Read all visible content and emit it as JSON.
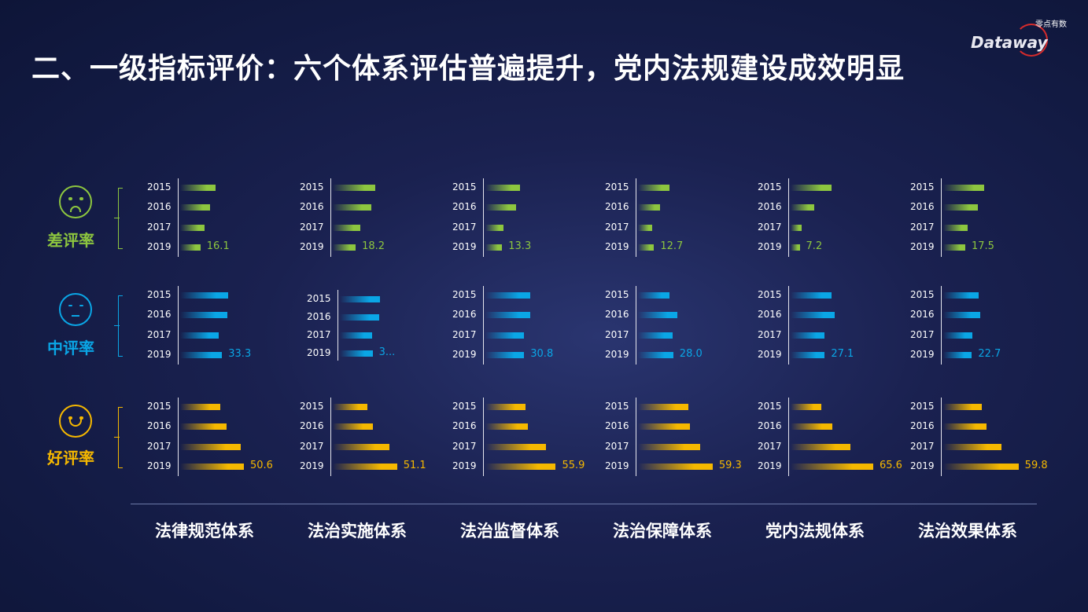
{
  "title": "二、一级指标评价：六个体系评估普遍提升，党内法规建设成效明显",
  "logo": {
    "name": "Dataway",
    "cn": "零点有数"
  },
  "colors": {
    "bad": "#8dc63f",
    "mid": "#0aa6e6",
    "good": "#f5b800"
  },
  "chart_data": {
    "type": "bar",
    "orientation": "horizontal",
    "years": [
      "2015",
      "2016",
      "2017",
      "2019"
    ],
    "categories": [
      "法律规范体系",
      "法治实施体系",
      "法治监督体系",
      "法治保障体系",
      "党内法规体系",
      "法治效果体系"
    ],
    "rows": [
      {
        "label": "差评率",
        "icon": "angry-face-icon",
        "key": "bad",
        "values": [
          [
            28.4,
            23.7,
            19.5,
            16.1
          ],
          [
            33.7,
            30.5,
            22.1,
            18.2
          ],
          [
            27.4,
            24.2,
            14.2,
            13.3
          ],
          [
            24.7,
            17.4,
            11.0,
            12.7
          ],
          [
            32.6,
            19.0,
            9.0,
            7.2
          ],
          [
            32.6,
            27.4,
            19.5,
            17.5
          ]
        ],
        "labels": [
          "16.1",
          "18.2",
          "13.3",
          "12.7",
          "7.2",
          "17.5"
        ]
      },
      {
        "label": "中评率",
        "icon": "neutral-face-icon",
        "key": "mid",
        "values": [
          [
            38.4,
            37.4,
            30.5,
            33.3
          ],
          [
            31.6,
            31.0,
            25.8,
            26.0
          ],
          [
            35.8,
            35.8,
            30.5,
            30.8
          ],
          [
            24.7,
            31.0,
            27.4,
            28.0
          ],
          [
            32.6,
            34.7,
            26.8,
            27.1
          ],
          [
            28.4,
            29.5,
            23.2,
            22.7
          ]
        ],
        "labels": [
          "33.3",
          "3...",
          "30.8",
          "28.0",
          "27.1",
          "22.7"
        ]
      },
      {
        "label": "好评率",
        "icon": "happy-face-icon",
        "key": "good",
        "values": [
          [
            31.6,
            36.8,
            47.9,
            50.6
          ],
          [
            27.4,
            31.6,
            45.3,
            51.1
          ],
          [
            31.6,
            33.7,
            47.9,
            55.9
          ],
          [
            40.0,
            41.0,
            49.5,
            59.3
          ],
          [
            24.2,
            33.2,
            47.4,
            65.6
          ],
          [
            30.5,
            34.2,
            46.3,
            59.8
          ]
        ],
        "labels": [
          "50.6",
          "51.1",
          "55.9",
          "59.3",
          "65.6",
          "59.8"
        ]
      }
    ]
  }
}
